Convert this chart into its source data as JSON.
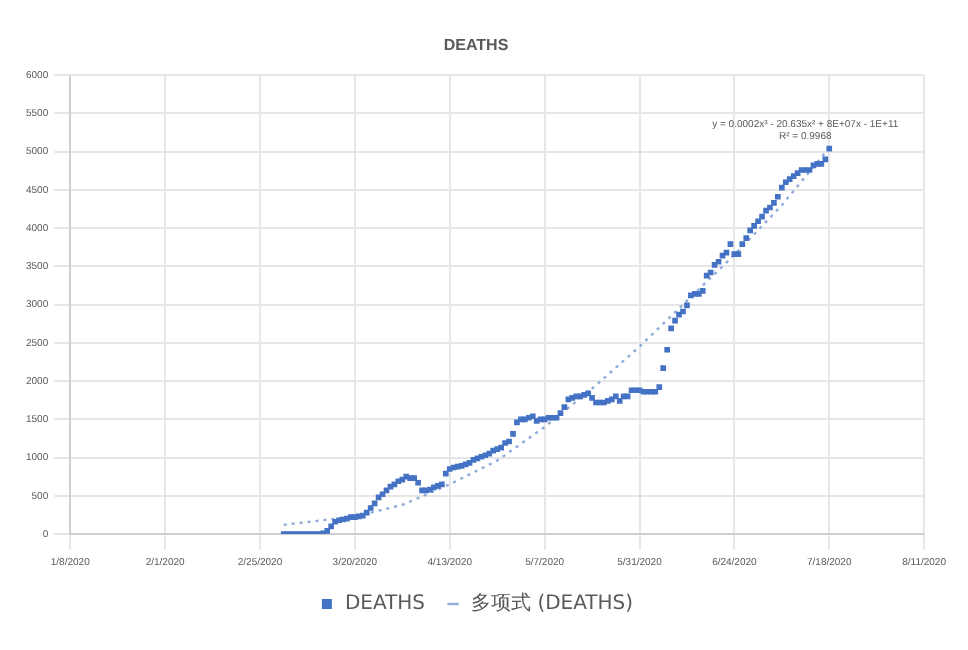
{
  "chart_data": {
    "type": "scatter",
    "title": "DEATHS",
    "xlim": [
      "2020-01-08",
      "2020-08-11"
    ],
    "xticks": [
      {
        "value": "2020-01-08",
        "label": "1/8/2020"
      },
      {
        "value": "2020-02-01",
        "label": "2/1/2020"
      },
      {
        "value": "2020-02-25",
        "label": "2/25/2020"
      },
      {
        "value": "2020-03-20",
        "label": "3/20/2020"
      },
      {
        "value": "2020-04-13",
        "label": "4/13/2020"
      },
      {
        "value": "2020-05-07",
        "label": "5/7/2020"
      },
      {
        "value": "2020-05-31",
        "label": "5/31/2020"
      },
      {
        "value": "2020-06-24",
        "label": "6/24/2020"
      },
      {
        "value": "2020-07-18",
        "label": "7/18/2020"
      },
      {
        "value": "2020-08-11",
        "label": "8/11/2020"
      }
    ],
    "ylim": [
      0,
      6000
    ],
    "yticks": [
      0,
      500,
      1000,
      1500,
      2000,
      2500,
      3000,
      3500,
      4000,
      4500,
      5000,
      5500,
      6000
    ],
    "grid": true,
    "legend": "bottom",
    "annotations": [
      "y = 0.0002x³ - 20.635x² + 8E+07x - 1E+11",
      "R² = 0.9968"
    ],
    "series": [
      {
        "name": "DEATHS",
        "marker": "square",
        "color": "#4472c4",
        "x": [
          "2020-03-02",
          "2020-03-03",
          "2020-03-04",
          "2020-03-05",
          "2020-03-06",
          "2020-03-07",
          "2020-03-08",
          "2020-03-09",
          "2020-03-10",
          "2020-03-11",
          "2020-03-12",
          "2020-03-13",
          "2020-03-14",
          "2020-03-15",
          "2020-03-16",
          "2020-03-17",
          "2020-03-18",
          "2020-03-19",
          "2020-03-20",
          "2020-03-21",
          "2020-03-22",
          "2020-03-23",
          "2020-03-24",
          "2020-03-25",
          "2020-03-26",
          "2020-03-27",
          "2020-03-28",
          "2020-03-29",
          "2020-03-30",
          "2020-03-31",
          "2020-04-01",
          "2020-04-02",
          "2020-04-03",
          "2020-04-04",
          "2020-04-05",
          "2020-04-06",
          "2020-04-07",
          "2020-04-08",
          "2020-04-09",
          "2020-04-10",
          "2020-04-11",
          "2020-04-12",
          "2020-04-13",
          "2020-04-14",
          "2020-04-15",
          "2020-04-16",
          "2020-04-17",
          "2020-04-18",
          "2020-04-19",
          "2020-04-20",
          "2020-04-21",
          "2020-04-22",
          "2020-04-23",
          "2020-04-24",
          "2020-04-25",
          "2020-04-26",
          "2020-04-27",
          "2020-04-28",
          "2020-04-29",
          "2020-04-30",
          "2020-05-01",
          "2020-05-02",
          "2020-05-03",
          "2020-05-04",
          "2020-05-05",
          "2020-05-06",
          "2020-05-07",
          "2020-05-08",
          "2020-05-09",
          "2020-05-10",
          "2020-05-11",
          "2020-05-12",
          "2020-05-13",
          "2020-05-14",
          "2020-05-15",
          "2020-05-16",
          "2020-05-17",
          "2020-05-18",
          "2020-05-19",
          "2020-05-20",
          "2020-05-21",
          "2020-05-22",
          "2020-05-23",
          "2020-05-24",
          "2020-05-25",
          "2020-05-26",
          "2020-05-27",
          "2020-05-28",
          "2020-05-29",
          "2020-05-30",
          "2020-05-31",
          "2020-06-01",
          "2020-06-02",
          "2020-06-03",
          "2020-06-04",
          "2020-06-05",
          "2020-06-06",
          "2020-06-07",
          "2020-06-08",
          "2020-06-09",
          "2020-06-10",
          "2020-06-11",
          "2020-06-12",
          "2020-06-13",
          "2020-06-14",
          "2020-06-15",
          "2020-06-16",
          "2020-06-17",
          "2020-06-18",
          "2020-06-19",
          "2020-06-20",
          "2020-06-21",
          "2020-06-22",
          "2020-06-23",
          "2020-06-24",
          "2020-06-25",
          "2020-06-26",
          "2020-06-27",
          "2020-06-28",
          "2020-06-29",
          "2020-06-30",
          "2020-07-01",
          "2020-07-02",
          "2020-07-03",
          "2020-07-04",
          "2020-07-05",
          "2020-07-06",
          "2020-07-07",
          "2020-07-08",
          "2020-07-09",
          "2020-07-10",
          "2020-07-11",
          "2020-07-12",
          "2020-07-13",
          "2020-07-14",
          "2020-07-15",
          "2020-07-16",
          "2020-07-17",
          "2020-07-18"
        ],
        "values": [
          0,
          0,
          0,
          0,
          0,
          0,
          0,
          0,
          0,
          0,
          10,
          40,
          100,
          160,
          180,
          190,
          200,
          220,
          220,
          230,
          240,
          280,
          340,
          400,
          480,
          520,
          570,
          620,
          650,
          690,
          710,
          750,
          730,
          730,
          670,
          570,
          570,
          580,
          610,
          630,
          650,
          790,
          850,
          870,
          880,
          890,
          910,
          930,
          970,
          990,
          1010,
          1030,
          1050,
          1090,
          1110,
          1130,
          1190,
          1210,
          1310,
          1460,
          1500,
          1500,
          1520,
          1540,
          1480,
          1500,
          1500,
          1520,
          1520,
          1520,
          1580,
          1660,
          1760,
          1780,
          1800,
          1800,
          1820,
          1840,
          1780,
          1720,
          1720,
          1720,
          1740,
          1760,
          1800,
          1740,
          1800,
          1800,
          1880,
          1880,
          1880,
          1860,
          1860,
          1860,
          1860,
          1920,
          2170,
          2410,
          2690,
          2790,
          2870,
          2910,
          2990,
          3120,
          3140,
          3140,
          3180,
          3380,
          3420,
          3520,
          3560,
          3640,
          3680,
          3790,
          3660,
          3660,
          3790,
          3870,
          3970,
          4030,
          4090,
          4150,
          4230,
          4270,
          4330,
          4410,
          4530,
          4600,
          4640,
          4680,
          4720,
          4760,
          4760,
          4760,
          4820,
          4840,
          4840,
          4900,
          5040
        ]
      },
      {
        "name": "多项式 (DEATHS)",
        "type": "line",
        "marker": "none",
        "line_style": "dotted",
        "color": "#8faadc",
        "x": [
          "2020-03-02",
          "2020-03-20",
          "2020-04-01",
          "2020-04-13",
          "2020-04-25",
          "2020-05-07",
          "2020-05-19",
          "2020-05-31",
          "2020-06-12",
          "2020-06-24",
          "2020-07-06",
          "2020-07-18"
        ],
        "values": [
          120,
          230,
          380,
          650,
          960,
          1400,
          1900,
          2450,
          3050,
          3650,
          4300,
          5050
        ]
      }
    ]
  }
}
